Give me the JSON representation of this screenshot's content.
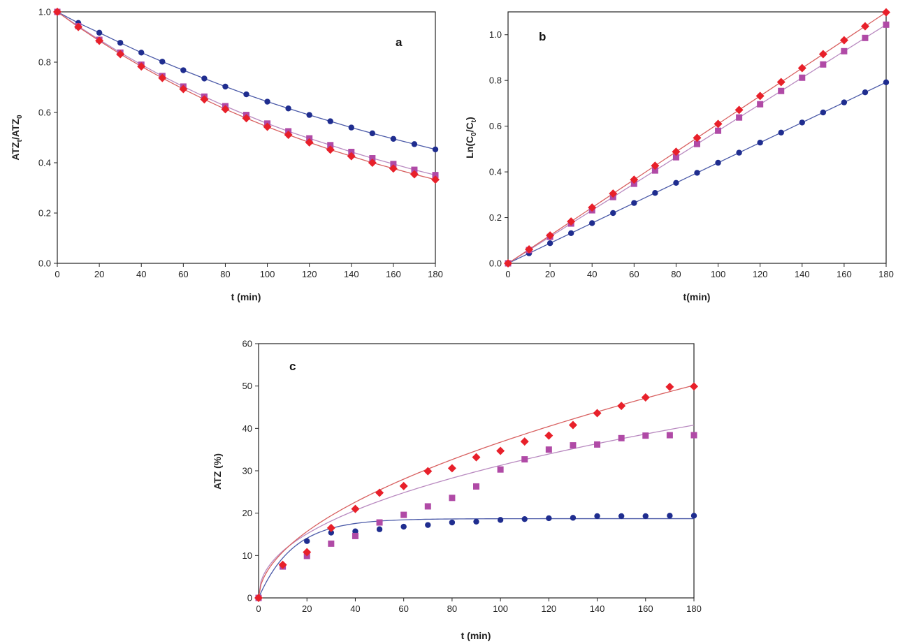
{
  "colors": {
    "blue": "#1f2d8f",
    "magenta": "#b04aa6",
    "red": "#e8202a",
    "blue_line": "#4b5aa8",
    "magenta_line": "#b98ac0",
    "red_line": "#d86060"
  },
  "chart_data": [
    {
      "id": "a",
      "type": "line",
      "panel_label": "a",
      "xlabel": "t (min)",
      "ylabel_main": "ATZ",
      "ylabel_sub1": "t",
      "ylabel_mid": "/ATZ",
      "ylabel_sub2": "0",
      "xlim": [
        0,
        180
      ],
      "ylim": [
        0,
        1.0
      ],
      "xticks": [
        0,
        20,
        40,
        60,
        80,
        100,
        120,
        140,
        160,
        180
      ],
      "yticks": [
        0.0,
        0.2,
        0.4,
        0.6,
        0.8,
        1.0
      ],
      "ytick_labels": [
        "0.0",
        "0.2",
        "0.4",
        "0.6",
        "0.8",
        "1.0"
      ],
      "x": [
        0,
        10,
        20,
        30,
        40,
        50,
        60,
        70,
        80,
        90,
        100,
        110,
        120,
        130,
        140,
        150,
        160,
        170,
        180
      ],
      "series": [
        {
          "name": "blue",
          "marker": "circle",
          "fit": "points",
          "values": [
            1.0,
            0.956,
            0.917,
            0.877,
            0.838,
            0.802,
            0.768,
            0.735,
            0.703,
            0.672,
            0.643,
            0.616,
            0.59,
            0.565,
            0.54,
            0.517,
            0.495,
            0.474,
            0.453
          ]
        },
        {
          "name": "magenta",
          "marker": "square",
          "fit": "points",
          "values": [
            1.0,
            0.943,
            0.889,
            0.838,
            0.79,
            0.745,
            0.703,
            0.663,
            0.625,
            0.59,
            0.556,
            0.525,
            0.497,
            0.47,
            0.443,
            0.418,
            0.395,
            0.372,
            0.351
          ]
        },
        {
          "name": "red",
          "marker": "diamond",
          "fit": "points",
          "values": [
            1.0,
            0.94,
            0.885,
            0.832,
            0.783,
            0.737,
            0.693,
            0.652,
            0.613,
            0.577,
            0.543,
            0.511,
            0.481,
            0.452,
            0.426,
            0.4,
            0.377,
            0.354,
            0.333
          ]
        }
      ]
    },
    {
      "id": "b",
      "type": "line",
      "panel_label": "b",
      "xlabel": "t(min)",
      "ylabel_main": "Ln(C",
      "ylabel_sub1": "0",
      "ylabel_mid": "/C",
      "ylabel_sub2": "t",
      "ylabel_end": ")",
      "xlim": [
        0,
        180
      ],
      "ylim": [
        0,
        1.1
      ],
      "xticks": [
        0,
        20,
        40,
        60,
        80,
        100,
        120,
        140,
        160,
        180
      ],
      "yticks": [
        0.0,
        0.2,
        0.4,
        0.6,
        0.8,
        1.0
      ],
      "ytick_labels": [
        "0.0",
        "0.2",
        "0.4",
        "0.6",
        "0.8",
        "1.0"
      ],
      "x": [
        0,
        10,
        20,
        30,
        40,
        50,
        60,
        70,
        80,
        90,
        100,
        110,
        120,
        130,
        140,
        150,
        160,
        170,
        180
      ],
      "series": [
        {
          "name": "blue",
          "marker": "circle",
          "fit": "linear",
          "slope": 0.0044,
          "values": [
            0.0,
            0.044,
            0.088,
            0.132,
            0.176,
            0.22,
            0.264,
            0.308,
            0.352,
            0.396,
            0.44,
            0.484,
            0.528,
            0.572,
            0.616,
            0.66,
            0.704,
            0.748,
            0.792
          ]
        },
        {
          "name": "magenta",
          "marker": "square",
          "fit": "linear",
          "slope": 0.0058,
          "values": [
            0.0,
            0.058,
            0.116,
            0.174,
            0.232,
            0.29,
            0.348,
            0.406,
            0.464,
            0.522,
            0.58,
            0.638,
            0.696,
            0.754,
            0.812,
            0.87,
            0.928,
            0.986,
            1.044
          ]
        },
        {
          "name": "red",
          "marker": "diamond",
          "fit": "linear",
          "slope": 0.0061,
          "values": [
            0.0,
            0.061,
            0.122,
            0.183,
            0.244,
            0.305,
            0.366,
            0.427,
            0.488,
            0.549,
            0.61,
            0.671,
            0.732,
            0.793,
            0.854,
            0.915,
            0.976,
            1.037,
            1.098
          ]
        }
      ]
    },
    {
      "id": "c",
      "type": "scatter",
      "panel_label": "c",
      "xlabel": "t (min)",
      "ylabel_main": "ATZ (%)",
      "xlim": [
        0,
        180
      ],
      "ylim": [
        0,
        60
      ],
      "xticks": [
        0,
        20,
        40,
        60,
        80,
        100,
        120,
        140,
        160,
        180
      ],
      "yticks": [
        0,
        10,
        20,
        30,
        40,
        50,
        60
      ],
      "ytick_labels": [
        "0",
        "10",
        "20",
        "30",
        "40",
        "50",
        "60"
      ],
      "x": [
        0,
        10,
        20,
        30,
        40,
        50,
        60,
        70,
        80,
        90,
        100,
        110,
        120,
        130,
        140,
        150,
        160,
        170,
        180
      ],
      "series": [
        {
          "name": "blue",
          "marker": "circle",
          "fit": "saturation",
          "fit_params": {
            "ymax": 18.7,
            "k": 0.07
          },
          "values": [
            0,
            7.5,
            13.4,
            15.4,
            15.7,
            16.2,
            16.8,
            17.2,
            17.8,
            18.0,
            18.4,
            18.6,
            18.8,
            18.9,
            19.3,
            19.3,
            19.3,
            19.4,
            19.4
          ]
        },
        {
          "name": "magenta",
          "marker": "square",
          "fit": "power",
          "fit_params": {
            "a": 3.9,
            "b": 0.452
          },
          "values": [
            0,
            7.4,
            9.9,
            12.8,
            14.6,
            17.8,
            19.6,
            21.6,
            23.6,
            26.3,
            30.3,
            32.7,
            35.0,
            36.0,
            36.2,
            37.7,
            38.3,
            38.4,
            38.4
          ]
        },
        {
          "name": "red",
          "marker": "diamond",
          "fit": "power",
          "fit_params": {
            "a": 3.2,
            "b": 0.53
          },
          "values": [
            0,
            7.8,
            10.8,
            16.5,
            21.0,
            24.8,
            26.4,
            29.9,
            30.6,
            33.2,
            34.7,
            36.9,
            38.3,
            40.8,
            43.6,
            45.3,
            47.3,
            49.8,
            49.9
          ]
        }
      ]
    }
  ]
}
